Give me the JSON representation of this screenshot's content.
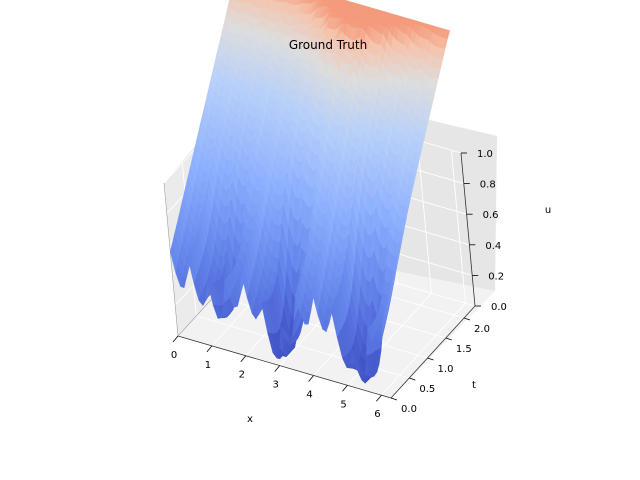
{
  "chart_data": {
    "type": "surface",
    "title": "Ground Truth",
    "xlabel": "x",
    "ylabel": "t",
    "zlabel": "u",
    "xlim": [
      0,
      6.283
    ],
    "ylim": [
      0,
      2.3
    ],
    "zlim": [
      0,
      1.0
    ],
    "xticks": [
      "0",
      "1",
      "2",
      "3",
      "4",
      "5",
      "6"
    ],
    "yticks": [
      "0.0",
      "0.5",
      "1.0",
      "1.5",
      "2.0"
    ],
    "zticks": [
      "0.0",
      "0.2",
      "0.4",
      "0.6",
      "0.8",
      "1.0"
    ],
    "colormap": "coolwarm",
    "grid": true,
    "troughs": [
      {
        "x": 1.2,
        "t": 0.3,
        "u": 0.32
      },
      {
        "x": 3.0,
        "t": 0.3,
        "u": 0.08
      },
      {
        "x": 5.3,
        "t": 0.3,
        "u": 0.08
      }
    ],
    "surface_max_u": 1.8
  }
}
